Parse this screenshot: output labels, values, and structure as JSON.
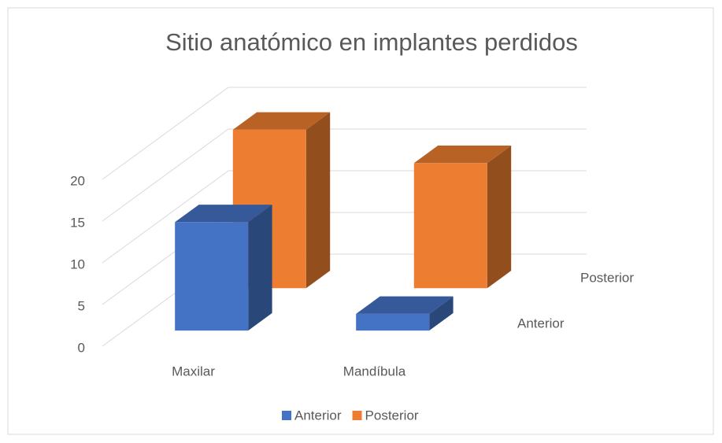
{
  "chart_data": {
    "type": "bar3d",
    "title": "Sitio anatómico en implantes perdidos",
    "categories": [
      "Maxilar",
      "Mandíbula"
    ],
    "series": [
      {
        "name": "Anterior",
        "color": "#4472c4",
        "values": [
          13,
          2
        ]
      },
      {
        "name": "Posterior",
        "color": "#ed7d31",
        "values": [
          19,
          15
        ]
      }
    ],
    "ylim": [
      0,
      20
    ],
    "yticks": [
      0,
      5,
      10,
      15,
      20
    ],
    "grid": true,
    "legend": "bottom"
  }
}
